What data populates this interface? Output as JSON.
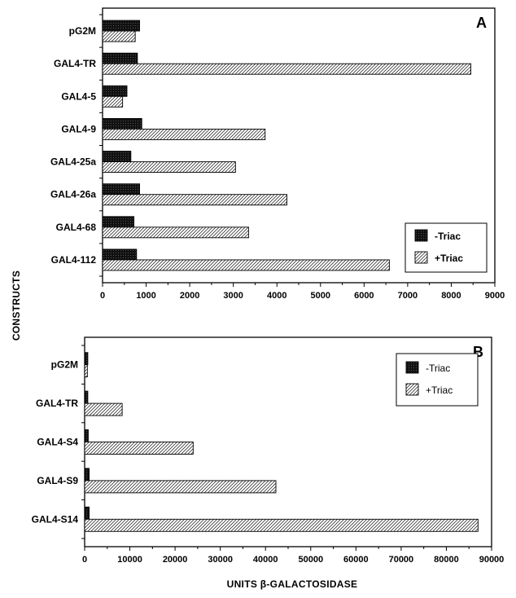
{
  "figure": {
    "ylabel": "CONSTRUCTS",
    "xlabel": "UNITS β-GALACTOSIDASE"
  },
  "chart_data": [
    {
      "type": "bar",
      "panel_label": "A",
      "orientation": "horizontal",
      "categories": [
        "pG2M",
        "GAL4-TR",
        "GAL4-5",
        "GAL4-9",
        "GAL4-25a",
        "GAL4-26a",
        "GAL4-68",
        "GAL4-112"
      ],
      "series": [
        {
          "name": "-Triac",
          "values": [
            850,
            800,
            560,
            900,
            650,
            850,
            720,
            780
          ],
          "color": "#1a1a1a",
          "pattern": "solid-dark"
        },
        {
          "name": "+Triac",
          "values": [
            750,
            8450,
            460,
            3730,
            3050,
            4230,
            3350,
            6580
          ],
          "color": "#ffffff",
          "pattern": "diagonal-hatch"
        }
      ],
      "xlim": [
        0,
        9000
      ],
      "xticks": [
        0,
        1000,
        2000,
        3000,
        4000,
        5000,
        6000,
        7000,
        8000,
        9000
      ],
      "legend_position": "bottom-right",
      "grid": false
    },
    {
      "type": "bar",
      "panel_label": "B",
      "orientation": "horizontal",
      "categories": [
        "pG2M",
        "GAL4-TR",
        "GAL4-S4",
        "GAL4-S9",
        "GAL4-S14"
      ],
      "series": [
        {
          "name": "-Triac",
          "values": [
            700,
            700,
            800,
            1000,
            1000
          ],
          "color": "#1a1a1a",
          "pattern": "solid-dark"
        },
        {
          "name": "+Triac",
          "values": [
            600,
            8300,
            24000,
            42300,
            87000
          ],
          "color": "#ffffff",
          "pattern": "diagonal-hatch"
        }
      ],
      "xlim": [
        0,
        90000
      ],
      "xticks": [
        0,
        10000,
        20000,
        30000,
        40000,
        50000,
        60000,
        70000,
        80000,
        90000
      ],
      "legend_position": "top-right",
      "grid": false
    }
  ]
}
